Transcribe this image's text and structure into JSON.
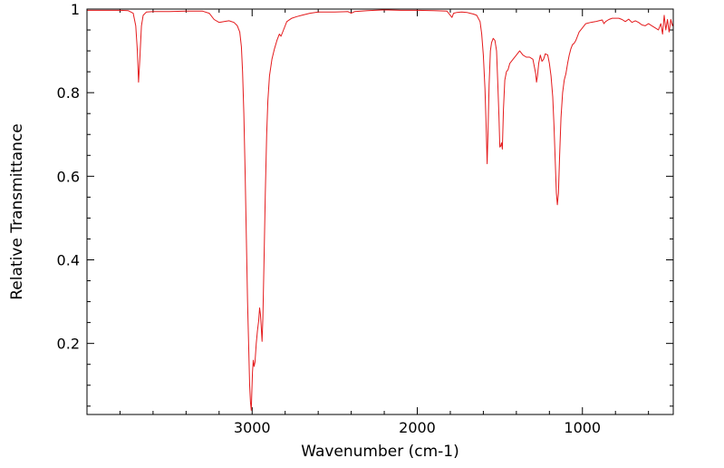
{
  "chart_data": {
    "type": "line",
    "title": "",
    "xlabel": "Wavenumber (cm-1)",
    "ylabel": "Relative Transmittance",
    "xlim": [
      4000,
      450
    ],
    "ylim": [
      0.03,
      1.0
    ],
    "x_reversed": true,
    "grid": false,
    "legend": "none",
    "x_ticks": [
      {
        "value": 3000,
        "label": "3000"
      },
      {
        "value": 2000,
        "label": "2000"
      },
      {
        "value": 1000,
        "label": "1000"
      }
    ],
    "y_ticks": [
      {
        "value": 0.2,
        "label": "0.2"
      },
      {
        "value": 0.4,
        "label": "0.4"
      },
      {
        "value": 0.6,
        "label": "0.6"
      },
      {
        "value": 0.8,
        "label": "0.8"
      },
      {
        "value": 1.0,
        "label": "1"
      }
    ],
    "series": [
      {
        "color": "#e41a1c",
        "points": [
          [
            4000,
            0.997
          ],
          [
            3900,
            0.997
          ],
          [
            3800,
            0.997
          ],
          [
            3750,
            0.996
          ],
          [
            3720,
            0.99
          ],
          [
            3705,
            0.96
          ],
          [
            3695,
            0.9
          ],
          [
            3688,
            0.825
          ],
          [
            3680,
            0.88
          ],
          [
            3670,
            0.96
          ],
          [
            3660,
            0.985
          ],
          [
            3640,
            0.993
          ],
          [
            3600,
            0.994
          ],
          [
            3500,
            0.994
          ],
          [
            3400,
            0.995
          ],
          [
            3300,
            0.995
          ],
          [
            3260,
            0.99
          ],
          [
            3230,
            0.975
          ],
          [
            3200,
            0.968
          ],
          [
            3170,
            0.97
          ],
          [
            3140,
            0.972
          ],
          [
            3110,
            0.968
          ],
          [
            3090,
            0.96
          ],
          [
            3075,
            0.945
          ],
          [
            3065,
            0.91
          ],
          [
            3058,
            0.85
          ],
          [
            3050,
            0.75
          ],
          [
            3042,
            0.6
          ],
          [
            3035,
            0.45
          ],
          [
            3028,
            0.3
          ],
          [
            3020,
            0.18
          ],
          [
            3015,
            0.1
          ],
          [
            3010,
            0.06
          ],
          [
            3005,
            0.04
          ],
          [
            2998,
            0.13
          ],
          [
            2993,
            0.16
          ],
          [
            2988,
            0.145
          ],
          [
            2983,
            0.155
          ],
          [
            2975,
            0.2
          ],
          [
            2968,
            0.23
          ],
          [
            2960,
            0.255
          ],
          [
            2955,
            0.285
          ],
          [
            2950,
            0.27
          ],
          [
            2945,
            0.24
          ],
          [
            2940,
            0.205
          ],
          [
            2935,
            0.26
          ],
          [
            2928,
            0.4
          ],
          [
            2920,
            0.56
          ],
          [
            2912,
            0.7
          ],
          [
            2905,
            0.78
          ],
          [
            2895,
            0.84
          ],
          [
            2880,
            0.88
          ],
          [
            2865,
            0.905
          ],
          [
            2850,
            0.925
          ],
          [
            2835,
            0.94
          ],
          [
            2825,
            0.935
          ],
          [
            2810,
            0.95
          ],
          [
            2790,
            0.97
          ],
          [
            2760,
            0.978
          ],
          [
            2730,
            0.982
          ],
          [
            2700,
            0.985
          ],
          [
            2650,
            0.99
          ],
          [
            2600,
            0.993
          ],
          [
            2500,
            0.993
          ],
          [
            2420,
            0.994
          ],
          [
            2400,
            0.99
          ],
          [
            2380,
            0.994
          ],
          [
            2300,
            0.996
          ],
          [
            2200,
            0.998
          ],
          [
            2100,
            0.997
          ],
          [
            2000,
            0.997
          ],
          [
            1900,
            0.996
          ],
          [
            1820,
            0.995
          ],
          [
            1800,
            0.985
          ],
          [
            1790,
            0.98
          ],
          [
            1780,
            0.99
          ],
          [
            1760,
            0.992
          ],
          [
            1730,
            0.993
          ],
          [
            1700,
            0.992
          ],
          [
            1680,
            0.99
          ],
          [
            1660,
            0.988
          ],
          [
            1640,
            0.985
          ],
          [
            1620,
            0.97
          ],
          [
            1610,
            0.94
          ],
          [
            1600,
            0.89
          ],
          [
            1590,
            0.81
          ],
          [
            1583,
            0.72
          ],
          [
            1577,
            0.63
          ],
          [
            1572,
            0.7
          ],
          [
            1565,
            0.82
          ],
          [
            1557,
            0.9
          ],
          [
            1550,
            0.92
          ],
          [
            1540,
            0.93
          ],
          [
            1530,
            0.925
          ],
          [
            1520,
            0.9
          ],
          [
            1512,
            0.82
          ],
          [
            1505,
            0.74
          ],
          [
            1500,
            0.67
          ],
          [
            1495,
            0.672
          ],
          [
            1490,
            0.68
          ],
          [
            1485,
            0.665
          ],
          [
            1478,
            0.76
          ],
          [
            1470,
            0.83
          ],
          [
            1460,
            0.85
          ],
          [
            1450,
            0.855
          ],
          [
            1440,
            0.87
          ],
          [
            1420,
            0.88
          ],
          [
            1400,
            0.89
          ],
          [
            1380,
            0.9
          ],
          [
            1360,
            0.89
          ],
          [
            1340,
            0.885
          ],
          [
            1320,
            0.885
          ],
          [
            1300,
            0.88
          ],
          [
            1290,
            0.86
          ],
          [
            1283,
            0.845
          ],
          [
            1278,
            0.825
          ],
          [
            1272,
            0.84
          ],
          [
            1265,
            0.87
          ],
          [
            1255,
            0.89
          ],
          [
            1245,
            0.875
          ],
          [
            1235,
            0.88
          ],
          [
            1225,
            0.893
          ],
          [
            1210,
            0.89
          ],
          [
            1200,
            0.87
          ],
          [
            1190,
            0.84
          ],
          [
            1180,
            0.79
          ],
          [
            1172,
            0.72
          ],
          [
            1165,
            0.64
          ],
          [
            1158,
            0.56
          ],
          [
            1152,
            0.532
          ],
          [
            1145,
            0.56
          ],
          [
            1138,
            0.65
          ],
          [
            1130,
            0.74
          ],
          [
            1120,
            0.8
          ],
          [
            1110,
            0.83
          ],
          [
            1100,
            0.845
          ],
          [
            1090,
            0.87
          ],
          [
            1080,
            0.89
          ],
          [
            1070,
            0.905
          ],
          [
            1060,
            0.915
          ],
          [
            1050,
            0.918
          ],
          [
            1040,
            0.925
          ],
          [
            1030,
            0.935
          ],
          [
            1020,
            0.945
          ],
          [
            1000,
            0.955
          ],
          [
            980,
            0.965
          ],
          [
            950,
            0.968
          ],
          [
            920,
            0.97
          ],
          [
            900,
            0.972
          ],
          [
            880,
            0.974
          ],
          [
            870,
            0.965
          ],
          [
            860,
            0.97
          ],
          [
            840,
            0.975
          ],
          [
            820,
            0.978
          ],
          [
            800,
            0.978
          ],
          [
            780,
            0.978
          ],
          [
            760,
            0.975
          ],
          [
            740,
            0.97
          ],
          [
            720,
            0.976
          ],
          [
            700,
            0.968
          ],
          [
            680,
            0.972
          ],
          [
            660,
            0.968
          ],
          [
            640,
            0.962
          ],
          [
            620,
            0.96
          ],
          [
            600,
            0.965
          ],
          [
            580,
            0.96
          ],
          [
            560,
            0.955
          ],
          [
            540,
            0.95
          ],
          [
            525,
            0.965
          ],
          [
            515,
            0.94
          ],
          [
            505,
            0.985
          ],
          [
            495,
            0.95
          ],
          [
            485,
            0.975
          ],
          [
            475,
            0.945
          ],
          [
            465,
            0.975
          ],
          [
            455,
            0.96
          ],
          [
            450,
            0.965
          ]
        ]
      }
    ]
  }
}
